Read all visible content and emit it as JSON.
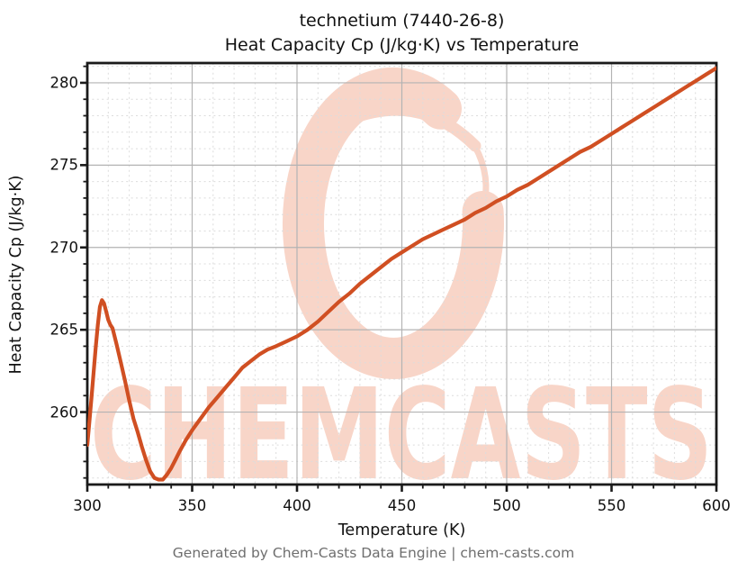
{
  "title": {
    "line1": "technetium (7440-26-8)",
    "line2": "Heat Capacity Cp (J/kg·K) vs Temperature"
  },
  "footer": {
    "text": "Generated by Chem-Casts Data Engine | chem-casts.com"
  },
  "watermark": {
    "text": "CHEMCASTS",
    "color": "#f8d5c8"
  },
  "colors": {
    "line": "#d04f22",
    "grid_major": "#b3b3b3",
    "grid_minor": "#dcdcdc",
    "spine": "#1a1a1a",
    "tick": "#1a1a1a",
    "title_text": "#111111",
    "footer_text": "#6e6e6e",
    "background": "#ffffff"
  },
  "chart_data": {
    "type": "line",
    "title": "technetium (7440-26-8) — Heat Capacity Cp (J/kg·K) vs Temperature",
    "xlabel": "Temperature (K)",
    "ylabel": "Heat Capacity Cp (J/kg·K)",
    "xlim": [
      300,
      600
    ],
    "ylim": [
      255.6,
      281.2
    ],
    "x_major_ticks": [
      300,
      350,
      400,
      450,
      500,
      550,
      600
    ],
    "y_major_ticks": [
      260,
      265,
      270,
      275,
      280
    ],
    "x_minor_step": 10,
    "y_minor_step": 1,
    "grid": "major solid + minor dashed",
    "legend": "none",
    "series": [
      {
        "name": "Heat Capacity Cp (J/kg·K)",
        "points": [
          [
            300,
            258.0
          ],
          [
            301,
            259.4
          ],
          [
            302,
            260.9
          ],
          [
            303,
            262.4
          ],
          [
            304,
            263.9
          ],
          [
            305,
            265.3
          ],
          [
            306,
            266.4
          ],
          [
            307,
            266.8
          ],
          [
            308,
            266.6
          ],
          [
            309,
            266.1
          ],
          [
            310,
            265.6
          ],
          [
            311,
            265.3
          ],
          [
            312,
            265.1
          ],
          [
            314,
            264.1
          ],
          [
            316,
            263.0
          ],
          [
            318,
            261.9
          ],
          [
            320,
            260.7
          ],
          [
            322,
            259.6
          ],
          [
            324,
            258.8
          ],
          [
            326,
            257.9
          ],
          [
            328,
            257.1
          ],
          [
            330,
            256.4
          ],
          [
            332,
            256.0
          ],
          [
            334,
            255.9
          ],
          [
            336,
            255.9
          ],
          [
            338,
            256.2
          ],
          [
            340,
            256.6
          ],
          [
            342,
            257.1
          ],
          [
            344,
            257.6
          ],
          [
            347,
            258.3
          ],
          [
            350,
            258.9
          ],
          [
            354,
            259.6
          ],
          [
            358,
            260.3
          ],
          [
            362,
            260.9
          ],
          [
            366,
            261.5
          ],
          [
            370,
            262.1
          ],
          [
            374,
            262.7
          ],
          [
            378,
            263.1
          ],
          [
            382,
            263.5
          ],
          [
            386,
            263.8
          ],
          [
            390,
            264.0
          ],
          [
            395,
            264.3
          ],
          [
            400,
            264.6
          ],
          [
            405,
            265.0
          ],
          [
            410,
            265.5
          ],
          [
            415,
            266.1
          ],
          [
            420,
            266.7
          ],
          [
            425,
            267.2
          ],
          [
            430,
            267.8
          ],
          [
            435,
            268.3
          ],
          [
            440,
            268.8
          ],
          [
            445,
            269.3
          ],
          [
            450,
            269.7
          ],
          [
            455,
            270.1
          ],
          [
            460,
            270.5
          ],
          [
            465,
            270.8
          ],
          [
            470,
            271.1
          ],
          [
            475,
            271.4
          ],
          [
            480,
            271.7
          ],
          [
            485,
            272.1
          ],
          [
            490,
            272.4
          ],
          [
            495,
            272.8
          ],
          [
            500,
            273.1
          ],
          [
            505,
            273.5
          ],
          [
            510,
            273.8
          ],
          [
            515,
            274.2
          ],
          [
            520,
            274.6
          ],
          [
            525,
            275.0
          ],
          [
            530,
            275.4
          ],
          [
            535,
            275.8
          ],
          [
            540,
            276.1
          ],
          [
            545,
            276.5
          ],
          [
            550,
            276.9
          ],
          [
            555,
            277.3
          ],
          [
            560,
            277.7
          ],
          [
            565,
            278.1
          ],
          [
            570,
            278.5
          ],
          [
            575,
            278.9
          ],
          [
            580,
            279.3
          ],
          [
            585,
            279.7
          ],
          [
            590,
            280.1
          ],
          [
            595,
            280.5
          ],
          [
            600,
            280.9
          ]
        ]
      }
    ]
  }
}
